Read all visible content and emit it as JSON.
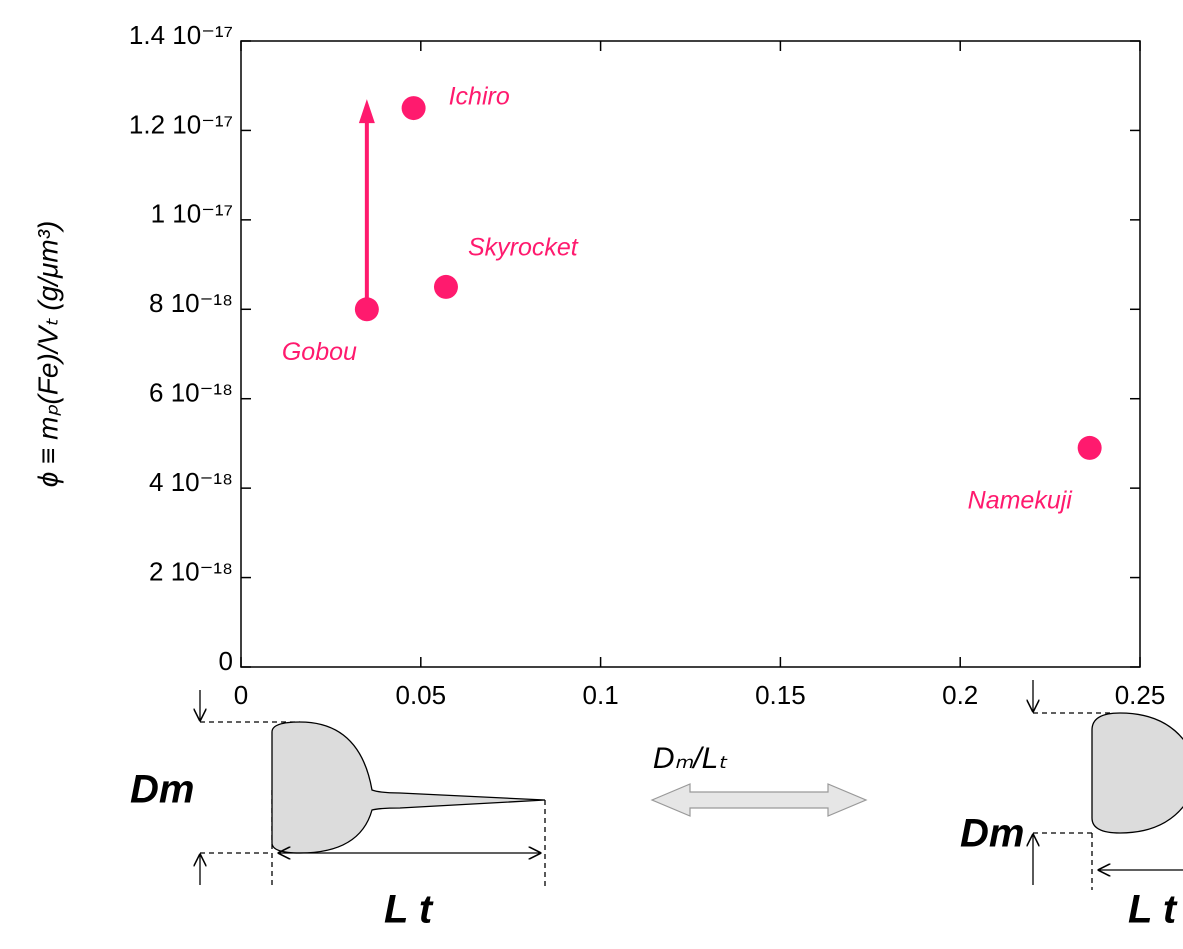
{
  "chart_data": {
    "type": "scatter",
    "x_label": "Dₘ/Lₜ",
    "y_label": "ϕ ≡ mₚ(Fe)/Vₜ (g/μm³)",
    "x": [
      0.048,
      0.057,
      0.035,
      0.236
    ],
    "values": [
      1.25e-17,
      8.5e-18,
      8e-18,
      4.9e-18
    ],
    "labels": [
      "Ichiro",
      "Skyrocket",
      "Gobou",
      "Namekuji"
    ],
    "color": "#ff1a6e",
    "xlim": [
      0,
      0.25
    ],
    "ylim": [
      0,
      1.4e-17
    ],
    "xticks": [
      0,
      0.05,
      0.1,
      0.15,
      0.2,
      0.25
    ],
    "yticks": [
      0,
      {
        "value": 2e-18,
        "label": "2 10⁻¹⁸"
      },
      {
        "value": 4e-18,
        "label": "4 10⁻¹⁸"
      },
      {
        "value": 6e-18,
        "label": "6 10⁻¹⁸"
      },
      {
        "value": 8e-18,
        "label": "8 10⁻¹⁸"
      },
      {
        "value": 1e-17,
        "label": "1 10⁻¹⁷"
      },
      {
        "value": 1.2e-17,
        "label": "1.2 10⁻¹⁷"
      },
      {
        "value": 1.4e-17,
        "label": "1.4 10⁻¹⁷"
      }
    ],
    "arrow": {
      "x": 0.035,
      "y_start": 8e-18,
      "y_end": 1.27e-17
    }
  },
  "diagrams": {
    "left": {
      "d_label": "Dm",
      "l_label": "L t"
    },
    "right": {
      "d_label": "Dm",
      "l_label": "L t"
    }
  }
}
